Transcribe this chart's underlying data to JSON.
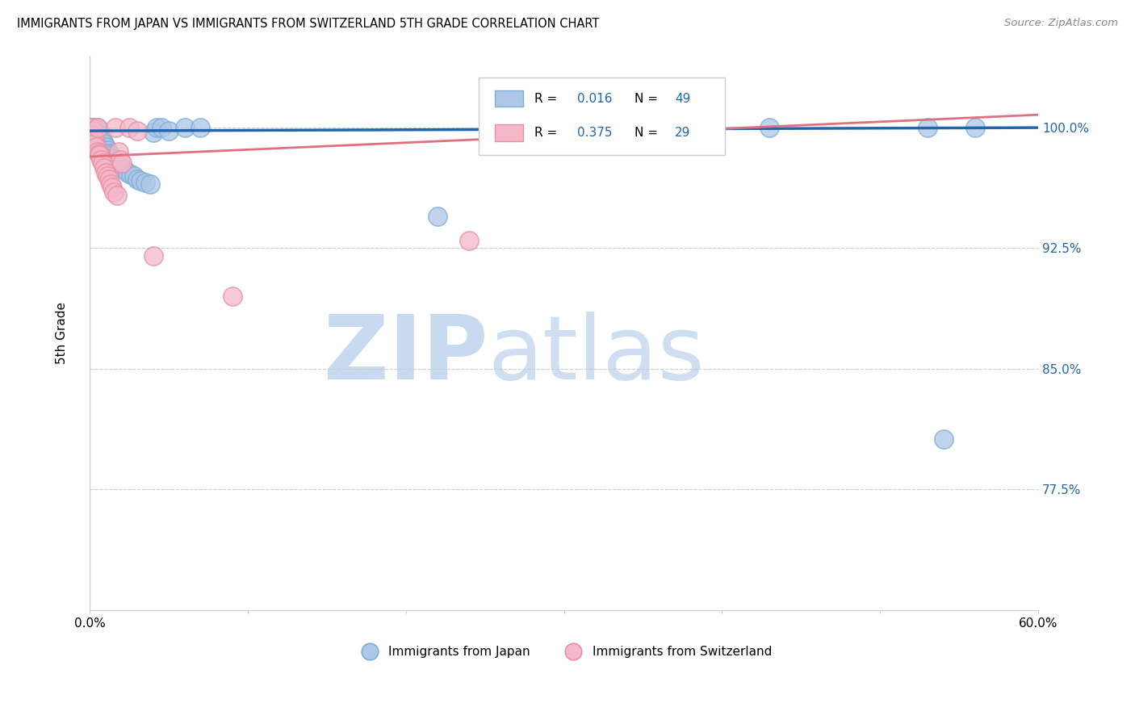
{
  "title": "IMMIGRANTS FROM JAPAN VS IMMIGRANTS FROM SWITZERLAND 5TH GRADE CORRELATION CHART",
  "source": "Source: ZipAtlas.com",
  "ylabel": "5th Grade",
  "ytick_labels": [
    "100.0%",
    "92.5%",
    "85.0%",
    "77.5%"
  ],
  "ytick_values": [
    1.0,
    0.925,
    0.85,
    0.775
  ],
  "xlim": [
    0.0,
    0.6
  ],
  "ylim": [
    0.7,
    1.045
  ],
  "legend_R1": "R = 0.016",
  "legend_N1": "N = 49",
  "legend_R2": "R = 0.375",
  "legend_N2": "N = 29",
  "japan_fill_color": "#aec6e8",
  "japan_edge_color": "#7bafd4",
  "swiss_fill_color": "#f4b8c8",
  "swiss_edge_color": "#e88fa4",
  "japan_line_color": "#2166ac",
  "swiss_line_color": "#e07080",
  "background_color": "#ffffff",
  "grid_color": "#cccccc",
  "blue_text": "#2166ac",
  "japan_scatter_x": [
    0.001,
    0.002,
    0.002,
    0.003,
    0.003,
    0.004,
    0.004,
    0.005,
    0.005,
    0.006,
    0.006,
    0.007,
    0.007,
    0.008,
    0.008,
    0.009,
    0.009,
    0.01,
    0.01,
    0.011,
    0.012,
    0.013,
    0.014,
    0.015,
    0.016,
    0.017,
    0.018,
    0.019,
    0.02,
    0.022,
    0.024,
    0.026,
    0.028,
    0.03,
    0.032,
    0.035,
    0.038,
    0.04,
    0.042,
    0.045,
    0.05,
    0.06,
    0.07,
    0.22,
    0.3,
    0.43,
    0.53,
    0.54,
    0.56
  ],
  "japan_scatter_y": [
    1.0,
    1.0,
    0.998,
    0.997,
    0.995,
    0.993,
    0.99,
    0.988,
    1.0,
    0.985,
    0.998,
    0.984,
    0.995,
    0.983,
    0.992,
    0.982,
    0.99,
    0.981,
    0.988,
    0.986,
    0.984,
    0.983,
    0.981,
    0.98,
    0.979,
    0.978,
    0.977,
    0.976,
    0.975,
    0.974,
    0.972,
    0.971,
    0.97,
    0.968,
    0.967,
    0.966,
    0.965,
    0.997,
    1.0,
    1.0,
    0.998,
    1.0,
    1.0,
    0.945,
    0.998,
    1.0,
    1.0,
    0.806,
    1.0
  ],
  "swiss_scatter_x": [
    0.001,
    0.002,
    0.002,
    0.003,
    0.003,
    0.004,
    0.005,
    0.005,
    0.006,
    0.006,
    0.007,
    0.008,
    0.009,
    0.01,
    0.011,
    0.012,
    0.013,
    0.014,
    0.015,
    0.016,
    0.017,
    0.018,
    0.019,
    0.02,
    0.025,
    0.03,
    0.04,
    0.09,
    0.24
  ],
  "swiss_scatter_y": [
    1.0,
    0.998,
    0.995,
    0.993,
    0.99,
    0.988,
    0.985,
    1.0,
    0.984,
    0.983,
    0.98,
    0.978,
    0.975,
    0.972,
    0.97,
    0.968,
    0.965,
    0.963,
    0.96,
    1.0,
    0.958,
    0.985,
    0.98,
    0.978,
    1.0,
    0.998,
    0.92,
    0.895,
    0.93
  ],
  "japan_line_x": [
    0.0,
    0.6
  ],
  "japan_line_y": [
    0.998,
    1.0
  ],
  "swiss_line_x": [
    0.0,
    0.6
  ],
  "swiss_line_y": [
    0.982,
    1.008
  ]
}
